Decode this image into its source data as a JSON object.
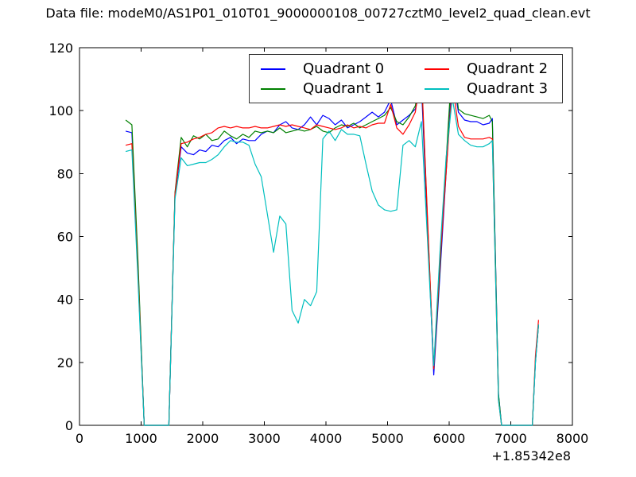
{
  "chart_data": {
    "type": "line",
    "title": "Data file: modeM0/AS1P01_010T01_9000000108_00727cztM0_level2_quad_clean.evt",
    "xlabel": "",
    "ylabel": "",
    "xlim": [
      0,
      8000
    ],
    "ylim": [
      0,
      120
    ],
    "x_ticks": [
      0,
      1000,
      2000,
      3000,
      4000,
      5000,
      6000,
      7000,
      8000
    ],
    "y_ticks": [
      0,
      20,
      40,
      60,
      80,
      100,
      120
    ],
    "x_offset_label": "+1.85342e8",
    "grid": false,
    "legend": {
      "position": "upper center",
      "columns": 2
    },
    "x": [
      750,
      850,
      950,
      1050,
      1150,
      1250,
      1350,
      1450,
      1550,
      1650,
      1750,
      1850,
      1950,
      2050,
      2150,
      2250,
      2350,
      2450,
      2550,
      2650,
      2750,
      2850,
      2950,
      3050,
      3150,
      3250,
      3350,
      3450,
      3550,
      3650,
      3750,
      3850,
      3950,
      4050,
      4150,
      4250,
      4350,
      4450,
      4550,
      4650,
      4750,
      4850,
      4950,
      5050,
      5150,
      5250,
      5350,
      5450,
      5550,
      5650,
      5750,
      5850,
      5950,
      6050,
      6150,
      6250,
      6350,
      6450,
      6550,
      6650,
      6700,
      6800,
      6850,
      6950,
      7050,
      7150,
      7250,
      7350,
      7400,
      7450
    ],
    "series": [
      {
        "name": "Quadrant 0",
        "color": "#0000ff",
        "values": [
          93.5,
          93,
          50,
          0,
          0,
          0,
          0,
          0,
          73,
          88.5,
          86.5,
          86,
          87.5,
          87,
          89,
          88.5,
          90.5,
          91.5,
          89.5,
          91,
          90.5,
          90.5,
          92.5,
          93.5,
          93,
          95.5,
          96.5,
          94.5,
          94,
          95.5,
          98,
          95.5,
          98.5,
          97.5,
          95.5,
          97,
          94.5,
          95.5,
          96.5,
          98,
          99.5,
          98,
          99.5,
          103.5,
          95.5,
          97,
          98.5,
          100.5,
          108,
          62,
          16,
          48,
          80,
          112,
          99.5,
          97,
          96.5,
          96.5,
          95.5,
          96,
          97.5,
          10,
          0,
          0,
          0,
          0,
          0,
          0,
          20,
          32
        ]
      },
      {
        "name": "Quadrant 1",
        "color": "#008000",
        "values": [
          97,
          95.5,
          52,
          0,
          0,
          0,
          0,
          0,
          74,
          91.5,
          88.5,
          92,
          91,
          92.5,
          90.5,
          91,
          93.5,
          92,
          91,
          92.5,
          91.5,
          93.5,
          93,
          93.5,
          93,
          94.5,
          93,
          93.5,
          94,
          93.5,
          94,
          95,
          93.5,
          93,
          94.5,
          95.5,
          95,
          96,
          94.5,
          95.5,
          96.5,
          97.5,
          98.5,
          101,
          96.5,
          95.5,
          98,
          101.5,
          111.5,
          64,
          18,
          50,
          84,
          116,
          100.5,
          99,
          98.5,
          98,
          97.5,
          98.5,
          96.5,
          10,
          0,
          0,
          0,
          0,
          0,
          0,
          20.5,
          32
        ]
      },
      {
        "name": "Quadrant 2",
        "color": "#ff0000",
        "values": [
          89,
          89.5,
          48,
          0,
          0,
          0,
          0,
          0,
          73.5,
          89.5,
          90,
          91,
          91.5,
          92.5,
          93,
          94.5,
          95,
          94.5,
          95,
          94.5,
          94.5,
          95,
          94.5,
          94.5,
          95,
          95.5,
          95,
          95.5,
          95,
          94.5,
          94,
          95.5,
          95,
          94.5,
          94,
          94.5,
          95.5,
          94.5,
          95,
          94.5,
          95.5,
          96,
          96,
          102,
          94.5,
          92.5,
          95.5,
          99.5,
          112.5,
          65,
          18,
          52,
          80,
          108.5,
          95,
          91.5,
          91,
          91,
          91,
          91.5,
          91,
          8,
          0,
          0,
          0,
          0,
          0,
          0,
          22,
          33.5
        ]
      },
      {
        "name": "Quadrant 3",
        "color": "#00bfbf",
        "values": [
          87,
          87.5,
          46,
          0,
          0,
          0,
          0,
          0,
          72,
          85,
          82.5,
          83,
          83.5,
          83.5,
          84.5,
          86,
          88.5,
          90.5,
          90,
          90,
          89,
          83,
          79,
          67,
          55,
          66.5,
          64,
          36.5,
          32.5,
          40,
          38,
          42.5,
          91,
          93.5,
          90.5,
          94,
          92.5,
          92.5,
          92,
          83,
          74.5,
          70,
          68.5,
          68,
          68.5,
          89,
          90.5,
          88.5,
          96.5,
          58,
          19,
          55,
          85,
          104,
          92.5,
          90.5,
          89,
          88.5,
          88.5,
          89.5,
          90.5,
          8,
          0,
          0,
          0,
          0,
          0,
          0,
          20,
          32
        ]
      }
    ]
  }
}
